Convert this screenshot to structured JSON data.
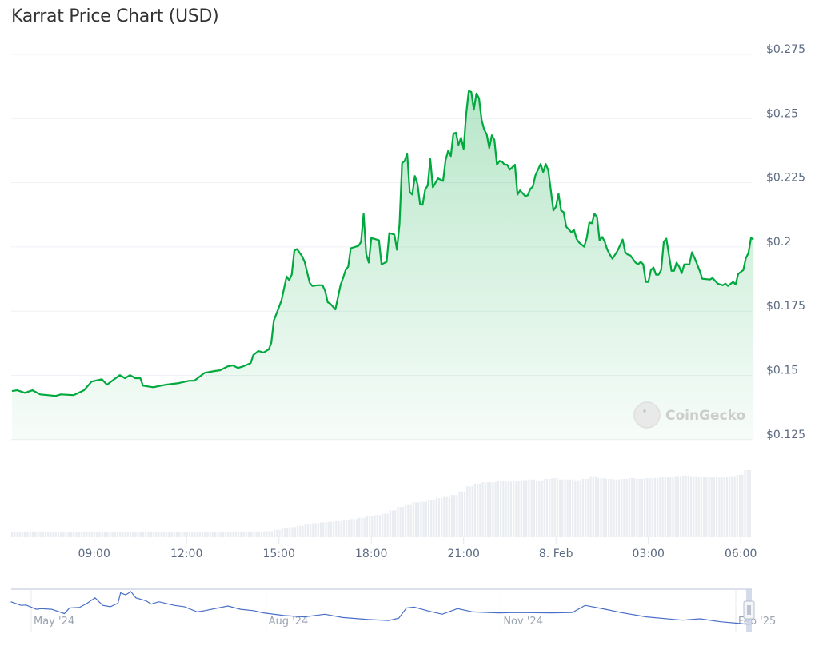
{
  "title": "Karrat Price Chart (USD)",
  "watermark": "CoinGecko",
  "colors": {
    "line": "#00a83e",
    "fill": "#00a83e",
    "volume": "#e9edf2",
    "navigator_line": "#4a6fc7",
    "grid": "#eef1f5"
  },
  "chart_data": {
    "type": "area",
    "title": "Karrat Price Chart (USD)",
    "xlabel": "",
    "ylabel": "",
    "ylim": [
      0.125,
      0.275
    ],
    "grid": true,
    "y_axis_position": "right",
    "y_ticks": [
      {
        "value": 0.275,
        "label": "$0.275"
      },
      {
        "value": 0.25,
        "label": "$0.25"
      },
      {
        "value": 0.225,
        "label": "$0.225"
      },
      {
        "value": 0.2,
        "label": "$0.2"
      },
      {
        "value": 0.175,
        "label": "$0.175"
      },
      {
        "value": 0.15,
        "label": "$0.15"
      },
      {
        "value": 0.125,
        "label": "$0.125"
      }
    ],
    "x_ticks": [
      {
        "time": "Feb 7 09:00",
        "label": "09:00"
      },
      {
        "time": "Feb 7 12:00",
        "label": "12:00"
      },
      {
        "time": "Feb 7 15:00",
        "label": "15:00"
      },
      {
        "time": "Feb 7 18:00",
        "label": "18:00"
      },
      {
        "time": "Feb 7 21:00",
        "label": "21:00"
      },
      {
        "time": "Feb 8 00:00",
        "label": "8. Feb"
      },
      {
        "time": "Feb 8 03:00",
        "label": "03:00"
      },
      {
        "time": "Feb 8 06:00",
        "label": "06:00"
      }
    ],
    "price": [
      [
        "Feb 7 06:20",
        0.1439
      ],
      [
        "Feb 7 06:30",
        0.1442
      ],
      [
        "Feb 7 06:45",
        0.1432
      ],
      [
        "Feb 7 07:00",
        0.1442
      ],
      [
        "Feb 7 07:15",
        0.1426
      ],
      [
        "Feb 7 07:45",
        0.142
      ],
      [
        "Feb 7 07:55",
        0.1426
      ],
      [
        "Feb 7 08:20",
        0.1423
      ],
      [
        "Feb 7 08:40",
        0.1442
      ],
      [
        "Feb 7 08:55",
        0.1476
      ],
      [
        "Feb 7 09:15",
        0.1485
      ],
      [
        "Feb 7 09:25",
        0.1464
      ],
      [
        "Feb 7 09:35",
        0.1479
      ],
      [
        "Feb 7 09:50",
        0.1501
      ],
      [
        "Feb 7 10:00",
        0.1489
      ],
      [
        "Feb 7 10:10",
        0.1501
      ],
      [
        "Feb 7 10:20",
        0.1489
      ],
      [
        "Feb 7 10:30",
        0.1489
      ],
      [
        "Feb 7 10:35",
        0.146
      ],
      [
        "Feb 7 10:55",
        0.1454
      ],
      [
        "Feb 7 11:20",
        0.1464
      ],
      [
        "Feb 7 11:45",
        0.147
      ],
      [
        "Feb 7 12:05",
        0.1479
      ],
      [
        "Feb 7 12:15",
        0.1479
      ],
      [
        "Feb 7 12:35",
        0.151
      ],
      [
        "Feb 7 12:55",
        0.1517
      ],
      [
        "Feb 7 13:05",
        0.152
      ],
      [
        "Feb 7 13:20",
        0.1535
      ],
      [
        "Feb 7 13:30",
        0.1539
      ],
      [
        "Feb 7 13:40",
        0.1529
      ],
      [
        "Feb 7 13:50",
        0.1535
      ],
      [
        "Feb 7 14:05",
        0.1548
      ],
      [
        "Feb 7 14:10",
        0.1579
      ],
      [
        "Feb 7 14:20",
        0.1595
      ],
      [
        "Feb 7 14:30",
        0.1589
      ],
      [
        "Feb 7 14:40",
        0.1601
      ],
      [
        "Feb 7 14:45",
        0.1626
      ],
      [
        "Feb 7 14:50",
        0.1714
      ],
      [
        "Feb 7 14:55",
        0.1739
      ],
      [
        "Feb 7 15:05",
        0.1792
      ],
      [
        "Feb 7 15:15",
        0.1885
      ],
      [
        "Feb 7 15:20",
        0.187
      ],
      [
        "Feb 7 15:25",
        0.1892
      ],
      [
        "Feb 7 15:30",
        0.1985
      ],
      [
        "Feb 7 15:35",
        0.1992
      ],
      [
        "Feb 7 15:45",
        0.1964
      ],
      [
        "Feb 7 15:50",
        0.1942
      ],
      [
        "Feb 7 16:00",
        0.186
      ],
      [
        "Feb 7 16:05",
        0.1848
      ],
      [
        "Feb 7 16:15",
        0.1851
      ],
      [
        "Feb 7 16:25",
        0.1851
      ],
      [
        "Feb 7 16:30",
        0.1829
      ],
      [
        "Feb 7 16:35",
        0.1785
      ],
      [
        "Feb 7 16:40",
        0.1779
      ],
      [
        "Feb 7 16:50",
        0.1757
      ],
      [
        "Feb 7 17:00",
        0.1851
      ],
      [
        "Feb 7 17:05",
        0.1879
      ],
      [
        "Feb 7 17:10",
        0.191
      ],
      [
        "Feb 7 17:15",
        0.1923
      ],
      [
        "Feb 7 17:20",
        0.1995
      ],
      [
        "Feb 7 17:35",
        0.2004
      ],
      [
        "Feb 7 17:40",
        0.202
      ],
      [
        "Feb 7 17:45",
        0.2129
      ],
      [
        "Feb 7 17:50",
        0.1973
      ],
      [
        "Feb 7 17:55",
        0.1939
      ],
      [
        "Feb 7 18:00",
        0.2035
      ],
      [
        "Feb 7 18:15",
        0.2026
      ],
      [
        "Feb 7 18:20",
        0.1932
      ],
      [
        "Feb 7 18:30",
        0.1942
      ],
      [
        "Feb 7 18:35",
        0.2054
      ],
      [
        "Feb 7 18:45",
        0.2048
      ],
      [
        "Feb 7 18:50",
        0.1989
      ],
      [
        "Feb 7 18:55",
        0.2089
      ],
      [
        "Feb 7 19:00",
        0.2326
      ],
      [
        "Feb 7 19:05",
        0.2335
      ],
      [
        "Feb 7 19:10",
        0.2364
      ],
      [
        "Feb 7 19:15",
        0.2214
      ],
      [
        "Feb 7 19:20",
        0.2204
      ],
      [
        "Feb 7 19:25",
        0.2276
      ],
      [
        "Feb 7 19:30",
        0.2245
      ],
      [
        "Feb 7 19:35",
        0.2167
      ],
      [
        "Feb 7 19:40",
        0.2164
      ],
      [
        "Feb 7 19:45",
        0.2223
      ],
      [
        "Feb 7 19:50",
        0.2239
      ],
      [
        "Feb 7 19:55",
        0.2342
      ],
      [
        "Feb 7 20:00",
        0.2232
      ],
      [
        "Feb 7 20:10",
        0.2267
      ],
      [
        "Feb 7 20:20",
        0.2257
      ],
      [
        "Feb 7 20:25",
        0.2339
      ],
      [
        "Feb 7 20:30",
        0.2376
      ],
      [
        "Feb 7 20:35",
        0.2354
      ],
      [
        "Feb 7 20:40",
        0.2442
      ],
      [
        "Feb 7 20:45",
        0.2445
      ],
      [
        "Feb 7 20:50",
        0.2398
      ],
      [
        "Feb 7 20:55",
        0.2426
      ],
      [
        "Feb 7 21:00",
        0.2382
      ],
      [
        "Feb 7 21:05",
        0.2517
      ],
      [
        "Feb 7 21:10",
        0.2607
      ],
      [
        "Feb 7 21:15",
        0.2604
      ],
      [
        "Feb 7 21:20",
        0.2535
      ],
      [
        "Feb 7 21:25",
        0.2598
      ],
      [
        "Feb 7 21:30",
        0.2579
      ],
      [
        "Feb 7 21:35",
        0.2495
      ],
      [
        "Feb 7 21:40",
        0.2457
      ],
      [
        "Feb 7 21:45",
        0.2439
      ],
      [
        "Feb 7 21:50",
        0.2385
      ],
      [
        "Feb 7 21:55",
        0.2435
      ],
      [
        "Feb 7 22:00",
        0.2417
      ],
      [
        "Feb 7 22:05",
        0.232
      ],
      [
        "Feb 7 22:10",
        0.2335
      ],
      [
        "Feb 7 22:15",
        0.2332
      ],
      [
        "Feb 7 22:20",
        0.232
      ],
      [
        "Feb 7 22:25",
        0.232
      ],
      [
        "Feb 7 22:30",
        0.2301
      ],
      [
        "Feb 7 22:40",
        0.232
      ],
      [
        "Feb 7 22:45",
        0.2204
      ],
      [
        "Feb 7 22:50",
        0.222
      ],
      [
        "Feb 7 23:00",
        0.2198
      ],
      [
        "Feb 7 23:05",
        0.2201
      ],
      [
        "Feb 7 23:10",
        0.2226
      ],
      [
        "Feb 7 23:15",
        0.2235
      ],
      [
        "Feb 7 23:20",
        0.2279
      ],
      [
        "Feb 7 23:30",
        0.2323
      ],
      [
        "Feb 7 23:35",
        0.2292
      ],
      [
        "Feb 7 23:40",
        0.2323
      ],
      [
        "Feb 7 23:45",
        0.2298
      ],
      [
        "Feb 7 23:55",
        0.2142
      ],
      [
        "Feb 8 00:00",
        0.2157
      ],
      [
        "Feb 8 00:05",
        0.2207
      ],
      [
        "Feb 8 00:10",
        0.2142
      ],
      [
        "Feb 8 00:15",
        0.2135
      ],
      [
        "Feb 8 00:20",
        0.2079
      ],
      [
        "Feb 8 00:30",
        0.2057
      ],
      [
        "Feb 8 00:35",
        0.2067
      ],
      [
        "Feb 8 00:40",
        0.2032
      ],
      [
        "Feb 8 00:45",
        0.2017
      ],
      [
        "Feb 8 00:55",
        0.2001
      ],
      [
        "Feb 8 01:00",
        0.2035
      ],
      [
        "Feb 8 01:05",
        0.2095
      ],
      [
        "Feb 8 01:10",
        0.2092
      ],
      [
        "Feb 8 01:15",
        0.2129
      ],
      [
        "Feb 8 01:20",
        0.2117
      ],
      [
        "Feb 8 01:25",
        0.2026
      ],
      [
        "Feb 8 01:30",
        0.2039
      ],
      [
        "Feb 8 01:35",
        0.202
      ],
      [
        "Feb 8 01:40",
        0.1989
      ],
      [
        "Feb 8 01:45",
        0.197
      ],
      [
        "Feb 8 01:50",
        0.1954
      ],
      [
        "Feb 8 02:00",
        0.1985
      ],
      [
        "Feb 8 02:10",
        0.2029
      ],
      [
        "Feb 8 02:15",
        0.1979
      ],
      [
        "Feb 8 02:20",
        0.197
      ],
      [
        "Feb 8 02:25",
        0.1967
      ],
      [
        "Feb 8 02:35",
        0.1939
      ],
      [
        "Feb 8 02:40",
        0.1932
      ],
      [
        "Feb 8 02:45",
        0.1942
      ],
      [
        "Feb 8 02:50",
        0.1932
      ],
      [
        "Feb 8 02:55",
        0.1864
      ],
      [
        "Feb 8 03:00",
        0.1864
      ],
      [
        "Feb 8 03:05",
        0.191
      ],
      [
        "Feb 8 03:10",
        0.192
      ],
      [
        "Feb 8 03:15",
        0.1892
      ],
      [
        "Feb 8 03:20",
        0.1892
      ],
      [
        "Feb 8 03:25",
        0.191
      ],
      [
        "Feb 8 03:30",
        0.202
      ],
      [
        "Feb 8 03:35",
        0.2032
      ],
      [
        "Feb 8 03:45",
        0.1907
      ],
      [
        "Feb 8 03:50",
        0.1907
      ],
      [
        "Feb 8 03:55",
        0.1939
      ],
      [
        "Feb 8 04:00",
        0.1923
      ],
      [
        "Feb 8 04:05",
        0.1898
      ],
      [
        "Feb 8 04:10",
        0.1932
      ],
      [
        "Feb 8 04:20",
        0.1932
      ],
      [
        "Feb 8 04:25",
        0.1979
      ],
      [
        "Feb 8 04:30",
        0.1957
      ],
      [
        "Feb 8 04:40",
        0.1907
      ],
      [
        "Feb 8 04:45",
        0.1876
      ],
      [
        "Feb 8 05:00",
        0.1873
      ],
      [
        "Feb 8 05:05",
        0.1879
      ],
      [
        "Feb 8 05:15",
        0.1857
      ],
      [
        "Feb 8 05:25",
        0.1851
      ],
      [
        "Feb 8 05:30",
        0.1857
      ],
      [
        "Feb 8 05:35",
        0.1848
      ],
      [
        "Feb 8 05:45",
        0.1864
      ],
      [
        "Feb 8 05:50",
        0.1854
      ],
      [
        "Feb 8 05:55",
        0.1895
      ],
      [
        "Feb 8 06:05",
        0.191
      ],
      [
        "Feb 8 06:10",
        0.1957
      ],
      [
        "Feb 8 06:15",
        0.1976
      ],
      [
        "Feb 8 06:20",
        0.2035
      ],
      [
        "Feb 8 06:25",
        0.2029
      ]
    ],
    "volume_relative": [
      0.085,
      0.085,
      0.085,
      0.085,
      0.085,
      0.08,
      0.085,
      0.075,
      0.075,
      0.085,
      0.085,
      0.085,
      0.075,
      0.075,
      0.075,
      0.075,
      0.075,
      0.085,
      0.085,
      0.08,
      0.075,
      0.075,
      0.075,
      0.08,
      0.075,
      0.075,
      0.075,
      0.08,
      0.085,
      0.085,
      0.085,
      0.085,
      0.085,
      0.09,
      0.11,
      0.13,
      0.15,
      0.17,
      0.19,
      0.21,
      0.22,
      0.23,
      0.24,
      0.25,
      0.27,
      0.29,
      0.31,
      0.33,
      0.35,
      0.4,
      0.45,
      0.48,
      0.52,
      0.53,
      0.56,
      0.58,
      0.6,
      0.63,
      0.68,
      0.76,
      0.8,
      0.82,
      0.82,
      0.84,
      0.83,
      0.84,
      0.85,
      0.86,
      0.84,
      0.87,
      0.88,
      0.86,
      0.86,
      0.85,
      0.87,
      0.91,
      0.88,
      0.87,
      0.86,
      0.87,
      0.88,
      0.87,
      0.88,
      0.88,
      0.9,
      0.89,
      0.91,
      0.92,
      0.91,
      0.9,
      0.9,
      0.89,
      0.9,
      0.91,
      0.93,
      1.0
    ],
    "navigator": {
      "labels": [
        {
          "date": "2024-05-01",
          "label": "May '24"
        },
        {
          "date": "2024-08-01",
          "label": "Aug '24"
        },
        {
          "date": "2024-11-01",
          "label": "Nov '24"
        },
        {
          "date": "2025-02-01",
          "label": "Feb '25"
        }
      ],
      "series_relative": [
        [
          "2024-04-23",
          0.69
        ],
        [
          "2024-04-27",
          0.58
        ],
        [
          "2024-04-29",
          0.59
        ],
        [
          "2024-05-03",
          0.46
        ],
        [
          "2024-05-05",
          0.48
        ],
        [
          "2024-05-09",
          0.46
        ],
        [
          "2024-05-14",
          0.33
        ],
        [
          "2024-05-16",
          0.5
        ],
        [
          "2024-05-20",
          0.52
        ],
        [
          "2024-05-23",
          0.65
        ],
        [
          "2024-05-26",
          0.81
        ],
        [
          "2024-05-29",
          0.58
        ],
        [
          "2024-06-01",
          0.54
        ],
        [
          "2024-06-04",
          0.65
        ],
        [
          "2024-06-05",
          0.96
        ],
        [
          "2024-06-07",
          0.9
        ],
        [
          "2024-06-09",
          1.0
        ],
        [
          "2024-06-11",
          0.81
        ],
        [
          "2024-06-15",
          0.72
        ],
        [
          "2024-06-17",
          0.62
        ],
        [
          "2024-06-20",
          0.69
        ],
        [
          "2024-06-26",
          0.58
        ],
        [
          "2024-06-30",
          0.54
        ],
        [
          "2024-07-05",
          0.38
        ],
        [
          "2024-07-08",
          0.42
        ],
        [
          "2024-07-17",
          0.56
        ],
        [
          "2024-07-22",
          0.46
        ],
        [
          "2024-07-27",
          0.42
        ],
        [
          "2024-07-31",
          0.35
        ],
        [
          "2024-08-08",
          0.27
        ],
        [
          "2024-08-16",
          0.23
        ],
        [
          "2024-08-24",
          0.31
        ],
        [
          "2024-08-31",
          0.21
        ],
        [
          "2024-09-10",
          0.15
        ],
        [
          "2024-09-18",
          0.12
        ],
        [
          "2024-09-22",
          0.19
        ],
        [
          "2024-09-25",
          0.5
        ],
        [
          "2024-09-28",
          0.53
        ],
        [
          "2024-10-03",
          0.42
        ],
        [
          "2024-10-09",
          0.31
        ],
        [
          "2024-10-15",
          0.48
        ],
        [
          "2024-10-21",
          0.38
        ],
        [
          "2024-10-31",
          0.35
        ],
        [
          "2024-11-07",
          0.36
        ],
        [
          "2024-11-21",
          0.35
        ],
        [
          "2024-11-29",
          0.36
        ],
        [
          "2024-12-04",
          0.58
        ],
        [
          "2024-12-12",
          0.46
        ],
        [
          "2024-12-18",
          0.36
        ],
        [
          "2024-12-28",
          0.23
        ],
        [
          "2025-01-11",
          0.13
        ],
        [
          "2025-01-18",
          0.17
        ],
        [
          "2025-01-26",
          0.08
        ],
        [
          "2025-02-01",
          0.04
        ],
        [
          "2025-02-06",
          0.0
        ],
        [
          "2025-02-08",
          0.02
        ]
      ]
    }
  }
}
